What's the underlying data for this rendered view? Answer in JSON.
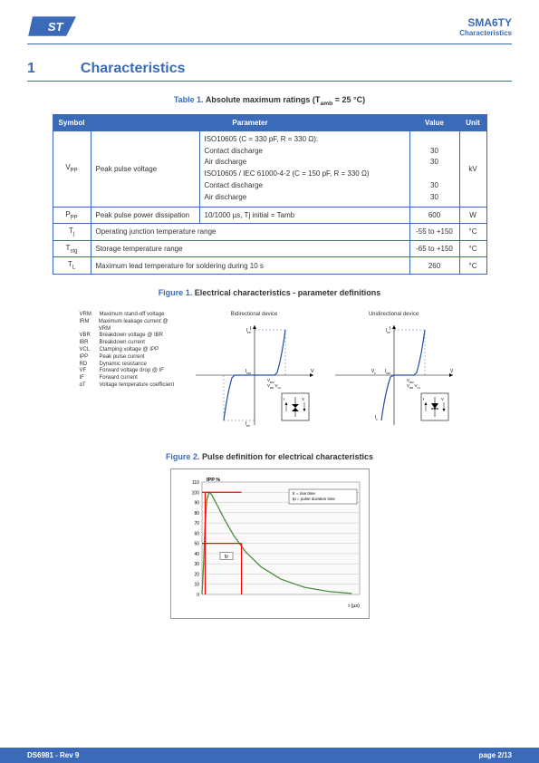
{
  "header": {
    "product": "SMA6TY",
    "section": "Characteristics",
    "logo_fill": "#3b6bb8"
  },
  "section": {
    "number": "1",
    "title": "Characteristics"
  },
  "table1": {
    "caption_label": "Table 1.",
    "caption": "Absolute maximum ratings (Tamb = 25 °C)",
    "headers": [
      "Symbol",
      "Parameter",
      "",
      "Value",
      "Unit"
    ],
    "rows": [
      {
        "symbol": "VPP",
        "param": "Peak pulse voltage",
        "cond_lines": [
          "ISO10605 (C = 330 pF, R = 330 Ω):",
          "Contact discharge",
          "Air discharge",
          "ISO10605 / IEC 61000-4-2 (C = 150 pF, R = 330 Ω)",
          "Contact discharge",
          "Air discharge"
        ],
        "values": [
          "",
          "30",
          "30",
          "",
          "30",
          "30"
        ],
        "unit": "kV"
      },
      {
        "symbol": "PPP",
        "param": "Peak pulse power dissipation",
        "cond": "10/1000 µs, Tj initial = Tamb",
        "value": "600",
        "unit": "W"
      },
      {
        "symbol": "Tj",
        "param": "Operating junction temperature range",
        "cond": "",
        "value": "-55 to +150",
        "unit": "°C"
      },
      {
        "symbol": "Tstg",
        "param": "Storage temperature range",
        "cond": "",
        "value": "-65 to +150",
        "unit": "°C"
      },
      {
        "symbol": "TL",
        "param": "Maximum lead temperature for soldering during 10 s",
        "cond": "",
        "value": "260",
        "unit": "°C"
      }
    ]
  },
  "figure1": {
    "caption_label": "Figure 1.",
    "caption": "Electrical characteristics - parameter definitions",
    "legend": [
      {
        "sym": "VRM",
        "desc": "Maximum stand-off voltage"
      },
      {
        "sym": "IRM",
        "desc": "Maximum leakage current @ VRM"
      },
      {
        "sym": "VBR",
        "desc": "Breakdown voltage @ IBR"
      },
      {
        "sym": "IBR",
        "desc": "Breakdown current"
      },
      {
        "sym": "VCL",
        "desc": "Clamping voltage @ IPP"
      },
      {
        "sym": "IPP",
        "desc": "Peak pulse current"
      },
      {
        "sym": "RD",
        "desc": "Dynamic resistance"
      },
      {
        "sym": "VF",
        "desc": "Forward voltage drop @ IF"
      },
      {
        "sym": "IF",
        "desc": "Forward current"
      },
      {
        "sym": "αT",
        "desc": "Voltage temperature coefficient"
      }
    ],
    "chart_a_title": "Bidirectional device",
    "chart_b_title": "Unidirectional device",
    "axis_labels": {
      "y_top": "IPP",
      "x_v": "V",
      "vrm": "VRM",
      "vbr": "VBR",
      "vcl": "VCL",
      "vf": "VF",
      "irm": "IRM",
      "iv": "I"
    },
    "curve_color": "#2050a0",
    "guide_color": "#2050a0",
    "box_stroke": "#000",
    "text_color": "#000"
  },
  "figure2": {
    "caption_label": "Figure 2.",
    "caption": "Pulse definition for electrical characteristics",
    "y_label": "IPP %",
    "x_label": "t (µs)",
    "y_ticks": [
      "0",
      "10",
      "20",
      "30",
      "40",
      "50",
      "60",
      "70",
      "80",
      "90",
      "100",
      "110"
    ],
    "legend_lines": [
      "tr = rise time",
      "tp = pulse duration time"
    ],
    "marker_tp": "tp",
    "pulse": {
      "curve_color": "#4a8f3c",
      "marker_color": "#ff0000",
      "grid_color": "#bbb",
      "bg": "#fafafa",
      "points": [
        [
          0,
          0
        ],
        [
          4,
          30
        ],
        [
          8,
          70
        ],
        [
          12,
          92
        ],
        [
          18,
          100
        ],
        [
          24,
          98
        ],
        [
          35,
          90
        ],
        [
          55,
          75
        ],
        [
          80,
          58
        ],
        [
          110,
          42
        ],
        [
          150,
          27
        ],
        [
          200,
          15
        ],
        [
          260,
          7
        ],
        [
          320,
          3
        ],
        [
          380,
          1
        ]
      ],
      "half_line_y": 50,
      "rise_x": 8,
      "tp_x": 100
    }
  },
  "footer": {
    "left": "DS6981 - Rev 9",
    "right": "page 2/13"
  }
}
